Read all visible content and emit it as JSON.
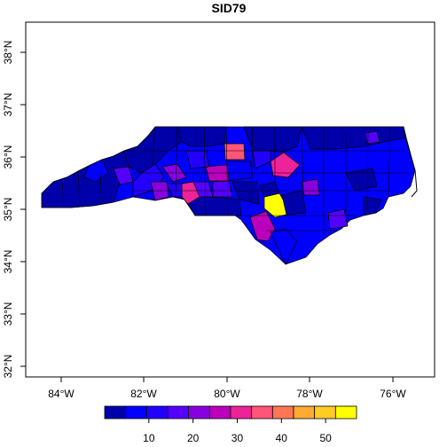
{
  "title": "SID79",
  "axes": {
    "x_ticks": [
      "84°W",
      "82°W",
      "80°W",
      "78°W",
      "76°W"
    ],
    "y_ticks": [
      "32°N",
      "33°N",
      "34°N",
      "35°N",
      "36°N",
      "37°N",
      "38°N"
    ]
  },
  "legend": {
    "colors": [
      "#0000AA",
      "#0000FF",
      "#2200FF",
      "#5500FF",
      "#8800E0",
      "#BB00BB",
      "#EE2299",
      "#FF5577",
      "#FF7755",
      "#FFAA33",
      "#FFCC22",
      "#FFFF00"
    ],
    "labels": [
      "10",
      "20",
      "30",
      "40",
      "50"
    ],
    "range": [
      0,
      57
    ]
  },
  "chart_data": {
    "type": "choropleth",
    "title": "SID79",
    "region": "North Carolina counties",
    "xlim": [
      -84.5,
      -75.3
    ],
    "ylim": [
      31.8,
      38.6
    ],
    "color_scale_range": [
      0,
      57
    ],
    "highlighted_counties": [
      {
        "approx_lon": -79.0,
        "approx_lat": 35.1,
        "value_range": "55-57",
        "color": "yellow"
      },
      {
        "approx_lon": -80.1,
        "approx_lat": 36.1,
        "value_range": "40-45",
        "color": "salmon"
      },
      {
        "approx_lon": -78.7,
        "approx_lat": 35.8,
        "value_range": "30-40",
        "color": "pink"
      },
      {
        "approx_lon": -81.2,
        "approx_lat": 35.3,
        "value_range": "30-40",
        "color": "pink"
      },
      {
        "approx_lon": -79.2,
        "approx_lat": 34.7,
        "value_range": "25-30",
        "color": "magenta"
      }
    ]
  }
}
